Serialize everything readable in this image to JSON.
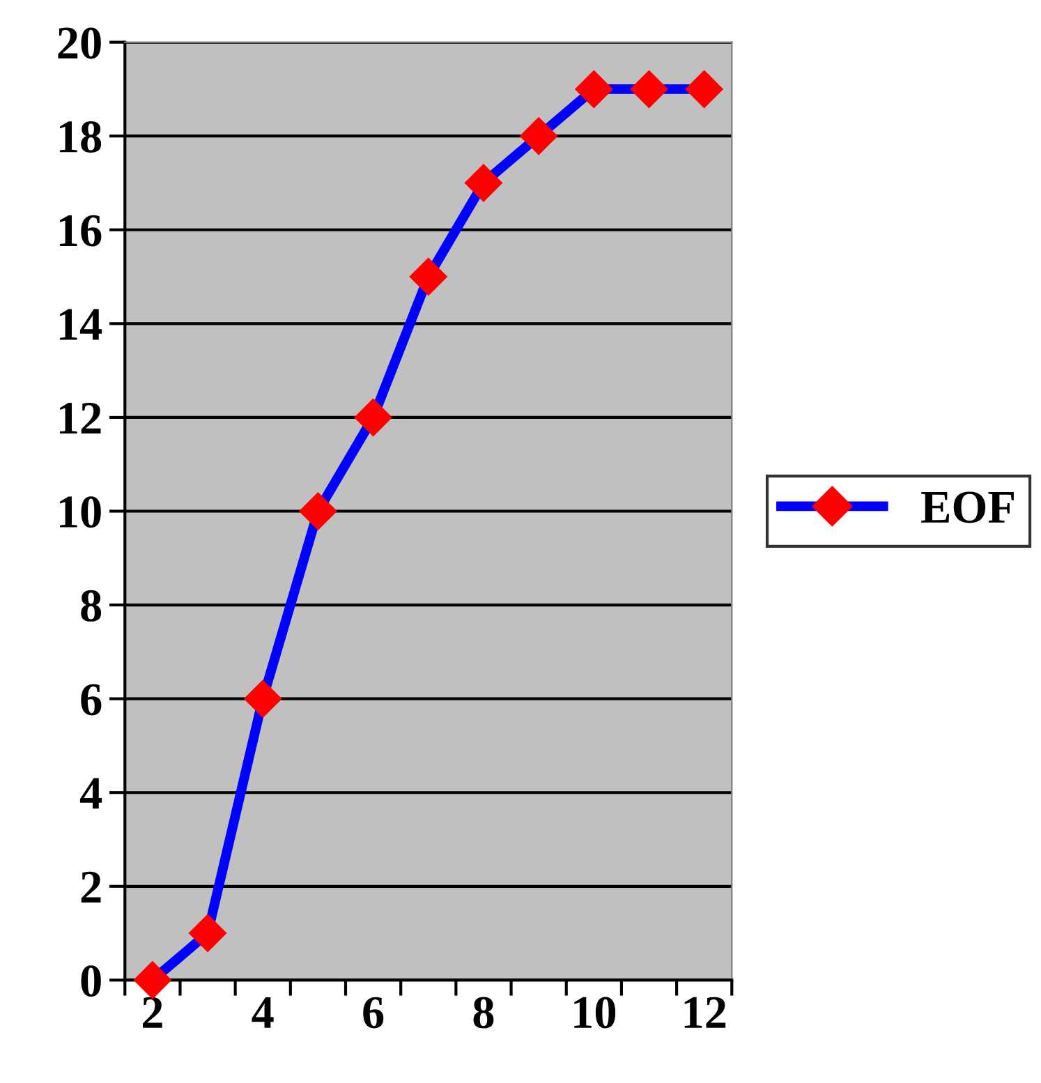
{
  "chart_data": {
    "type": "line",
    "categories": [
      "2",
      null,
      "4",
      null,
      "6",
      null,
      "8",
      null,
      "10",
      null,
      "12"
    ],
    "series": [
      {
        "name": "EOF",
        "color": "#0000ff",
        "colors": [
          "#ff0000",
          "#ff0000",
          "#ff0000",
          "#ff0000",
          "#ff0000",
          "#ff0000",
          "#ff0000",
          "#ff0000",
          "#ff0000",
          "#ff0000",
          "#ff0000"
        ],
        "values": [
          0,
          1,
          6,
          10,
          12,
          15,
          17,
          18,
          19,
          19,
          19
        ]
      }
    ],
    "ylim": [
      0,
      20
    ],
    "yticks": [
      0,
      2,
      4,
      6,
      8,
      10,
      12,
      14,
      16,
      18,
      20
    ],
    "grid": "y",
    "legend": "right",
    "marker": "diamond",
    "line_style": "solid"
  }
}
